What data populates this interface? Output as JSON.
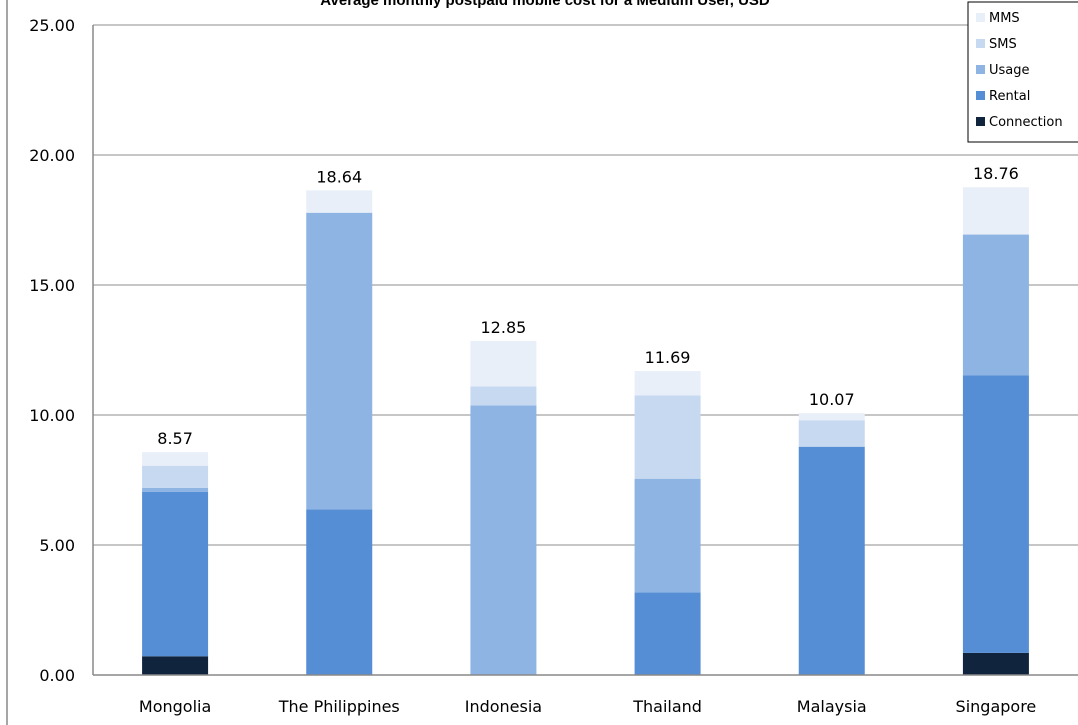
{
  "chart_data": {
    "type": "bar",
    "stacked": true,
    "title": "Average monthly postpaid mobile cost for a Medium User, USD",
    "xlabel": "",
    "ylabel": "",
    "ylim": [
      0,
      25
    ],
    "yticks": [
      "0.00",
      "5.00",
      "10.00",
      "15.00",
      "20.00",
      "25.00"
    ],
    "grid": true,
    "legend_position": "top-right",
    "categories": [
      "Mongolia",
      "The Philippines",
      "Indonesia",
      "Thailand",
      "Malaysia",
      "Singapore"
    ],
    "totals": [
      "8.57",
      "18.64",
      "12.85",
      "11.69",
      "10.07",
      "18.76"
    ],
    "series": [
      {
        "name": "Connection",
        "color": "#10243e",
        "values": [
          0.72,
          0,
          0,
          0,
          0,
          0.85
        ]
      },
      {
        "name": "Rental",
        "color": "#558ed5",
        "values": [
          6.33,
          6.37,
          0,
          3.18,
          8.78,
          10.67
        ]
      },
      {
        "name": "Usage",
        "color": "#8eb4e3",
        "values": [
          0.15,
          11.41,
          10.37,
          4.37,
          0,
          5.42
        ]
      },
      {
        "name": "SMS",
        "color": "#c6d9f1",
        "values": [
          0.85,
          0,
          0.73,
          3.2,
          1.02,
          0
        ]
      },
      {
        "name": "MMS",
        "color": "#e8eff9",
        "values": [
          0.52,
          0.86,
          1.75,
          0.94,
          0.27,
          1.82
        ]
      }
    ]
  }
}
